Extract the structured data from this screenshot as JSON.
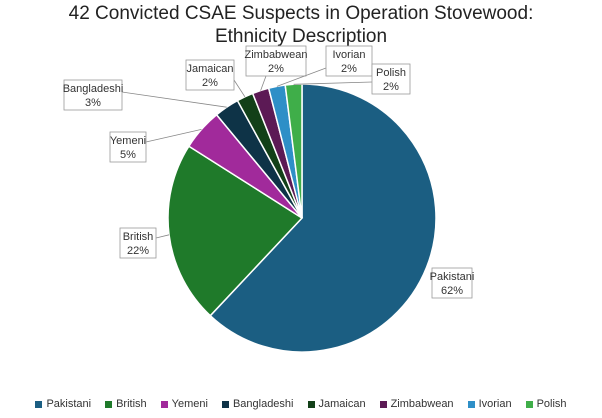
{
  "chart_data": {
    "type": "pie",
    "title_lines": [
      "42 Convicted CSAE Suspects in Operation Stovewood:",
      "Ethnicity Description"
    ],
    "slices": [
      {
        "label": "Pakistani",
        "percent_label": "62%",
        "value": 62,
        "color": "#1b5e82"
      },
      {
        "label": "British",
        "percent_label": "22%",
        "value": 22,
        "color": "#1f7a2a"
      },
      {
        "label": "Yemeni",
        "percent_label": "5%",
        "value": 5,
        "color": "#a12a9b"
      },
      {
        "label": "Bangladeshi",
        "percent_label": "3%",
        "value": 3,
        "color": "#0e3347"
      },
      {
        "label": "Jamaican",
        "percent_label": "2%",
        "value": 2,
        "color": "#124018"
      },
      {
        "label": "Zimbabwean",
        "percent_label": "2%",
        "value": 2,
        "color": "#5c1a55"
      },
      {
        "label": "Ivorian",
        "percent_label": "2%",
        "value": 2,
        "color": "#2e8fc7"
      },
      {
        "label": "Polish",
        "percent_label": "2%",
        "value": 2,
        "color": "#3fae49"
      }
    ],
    "legend_position": "bottom"
  }
}
